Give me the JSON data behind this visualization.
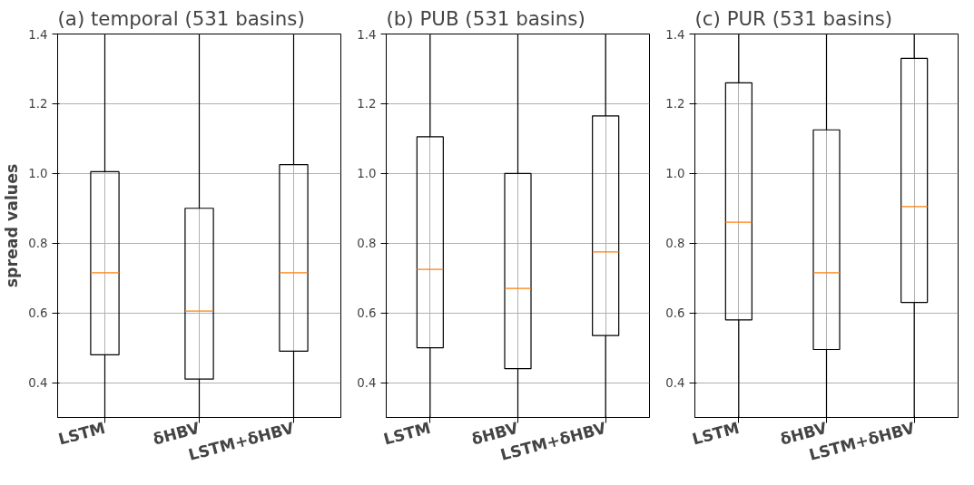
{
  "chart_data": [
    {
      "type": "box",
      "title": "(a) temporal (531 basins)",
      "ylabel": "spread values",
      "categories": [
        "LSTM",
        "δHBV",
        "LSTM+δHBV"
      ],
      "ylim": [
        0.3,
        1.4
      ],
      "yticks": [
        {
          "value": 0.4,
          "label": "0.4"
        },
        {
          "value": 0.6,
          "label": "0.6"
        },
        {
          "value": 0.8,
          "label": "0.8"
        },
        {
          "value": 1.0,
          "label": "1.0"
        },
        {
          "value": 1.2,
          "label": "1.2"
        },
        {
          "value": 1.4,
          "label": "1.4"
        }
      ],
      "grid": true,
      "boxes": [
        {
          "low": 0.3,
          "q1": 0.48,
          "median": 0.715,
          "q3": 1.005,
          "high": 1.4
        },
        {
          "low": 0.3,
          "q1": 0.41,
          "median": 0.605,
          "q3": 0.9,
          "high": 1.4
        },
        {
          "low": 0.3,
          "q1": 0.49,
          "median": 0.715,
          "q3": 1.025,
          "high": 1.4
        }
      ]
    },
    {
      "type": "box",
      "title": "(b) PUB (531 basins)",
      "categories": [
        "LSTM",
        "δHBV",
        "LSTM+δHBV"
      ],
      "ylim": [
        0.3,
        1.4
      ],
      "yticks": [
        {
          "value": 0.4,
          "label": "0.4"
        },
        {
          "value": 0.6,
          "label": "0.6"
        },
        {
          "value": 0.8,
          "label": "0.8"
        },
        {
          "value": 1.0,
          "label": "1.0"
        },
        {
          "value": 1.2,
          "label": "1.2"
        },
        {
          "value": 1.4,
          "label": "1.4"
        }
      ],
      "grid": true,
      "boxes": [
        {
          "low": 0.3,
          "q1": 0.5,
          "median": 0.725,
          "q3": 1.105,
          "high": 1.4
        },
        {
          "low": 0.3,
          "q1": 0.44,
          "median": 0.67,
          "q3": 1.0,
          "high": 1.4
        },
        {
          "low": 0.3,
          "q1": 0.535,
          "median": 0.775,
          "q3": 1.165,
          "high": 1.4
        }
      ]
    },
    {
      "type": "box",
      "title": "(c) PUR (531 basins)",
      "categories": [
        "LSTM",
        "δHBV",
        "LSTM+δHBV"
      ],
      "ylim": [
        0.3,
        1.4
      ],
      "yticks": [
        {
          "value": 0.4,
          "label": "0.4"
        },
        {
          "value": 0.6,
          "label": "0.6"
        },
        {
          "value": 0.8,
          "label": "0.8"
        },
        {
          "value": 1.0,
          "label": "1.0"
        },
        {
          "value": 1.2,
          "label": "1.2"
        },
        {
          "value": 1.4,
          "label": "1.4"
        }
      ],
      "grid": true,
      "boxes": [
        {
          "low": 0.3,
          "q1": 0.58,
          "median": 0.86,
          "q3": 1.26,
          "high": 1.4
        },
        {
          "low": 0.3,
          "q1": 0.495,
          "median": 0.715,
          "q3": 1.125,
          "high": 1.4
        },
        {
          "low": 0.3,
          "q1": 0.63,
          "median": 0.905,
          "q3": 1.33,
          "high": 1.4
        }
      ]
    }
  ]
}
